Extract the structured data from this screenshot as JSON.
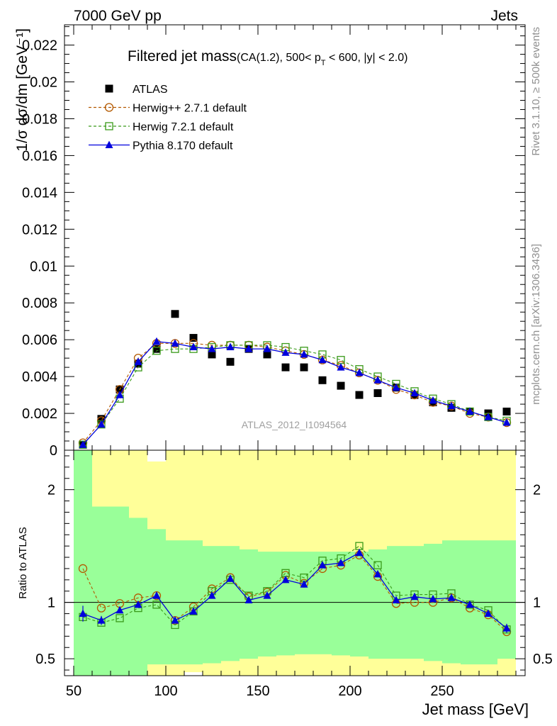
{
  "header": {
    "left": "7000 GeV pp",
    "right": "Jets"
  },
  "title": {
    "main": "Filtered jet mass",
    "sub_pre": "(CA(1.2), 500< p",
    "sub_sub": "T",
    "sub_post": " < 600, |y| < 2.0)"
  },
  "side_labels": {
    "rivet": "Rivet 3.1.10, ≥ 500k events",
    "mcplots": "mcplots.cern.ch [arXiv:1306.3436]"
  },
  "watermark": "ATLAS_2012_I1094564",
  "ylabel_main": "1/σ dσ/dm [GeV⁻¹]",
  "ylabel_ratio": "Ratio to ATLAS",
  "xlabel": "Jet mass [GeV]",
  "colors": {
    "atlas": "#000000",
    "herwigpp": "#b35900",
    "herwig7": "#3a9a1a",
    "pythia": "#0000dd",
    "band_inner": "#99ff99",
    "band_outer": "#ffff99"
  },
  "chart_data": [
    {
      "type": "scatter",
      "title": "Filtered jet mass(CA(1.2), 500< pT < 600, |y| < 2.0)",
      "xlabel": "Jet mass [GeV]",
      "ylabel": "1/σ dσ/dm [GeV⁻¹]",
      "xlim": [
        45,
        295
      ],
      "ylim": [
        0,
        0.0231
      ],
      "xticks": [
        50,
        100,
        150,
        200,
        250
      ],
      "yticks": [
        0,
        0.002,
        0.004,
        0.006,
        0.008,
        0.01,
        0.012,
        0.014,
        0.016,
        0.018,
        0.02,
        0.022
      ],
      "ytick_labels": [
        "0",
        "0.002",
        "0.004",
        "0.006",
        "0.008",
        "0.01",
        "0.012",
        "0.014",
        "0.016",
        "0.018",
        "0.02",
        "0.022"
      ],
      "legend_position": "top-left",
      "x": [
        55,
        65,
        75,
        85,
        95,
        105,
        115,
        125,
        135,
        145,
        155,
        165,
        175,
        185,
        195,
        205,
        215,
        225,
        235,
        245,
        255,
        265,
        275,
        285
      ],
      "series": [
        {
          "name": "ATLAS",
          "marker": "filled-square",
          "values": [
            0.0003,
            0.0017,
            0.0033,
            0.0047,
            0.0055,
            0.0074,
            0.0061,
            0.0052,
            0.0048,
            0.0055,
            0.0052,
            0.0045,
            0.0045,
            0.0038,
            0.0035,
            0.003,
            0.0031,
            0.0034,
            0.003,
            0.0026,
            0.0023,
            0.0021,
            0.002,
            0.0021
          ]
        },
        {
          "name": "Herwig++ 2.7.1 default",
          "marker": "open-circle",
          "line": "dashed",
          "values": [
            0.0004,
            0.0016,
            0.0033,
            0.005,
            0.0058,
            0.0058,
            0.0058,
            0.0057,
            0.0057,
            0.0057,
            0.0056,
            0.0054,
            0.0052,
            0.0049,
            0.0046,
            0.0042,
            0.0038,
            0.0033,
            0.003,
            0.0026,
            0.0024,
            0.002,
            0.0018,
            0.0015
          ]
        },
        {
          "name": "Herwig 7.2.1 default",
          "marker": "open-square",
          "line": "dashed",
          "values": [
            0.0003,
            0.0014,
            0.0028,
            0.0045,
            0.0054,
            0.0055,
            0.0055,
            0.0056,
            0.0057,
            0.0057,
            0.0057,
            0.0056,
            0.0054,
            0.0052,
            0.0049,
            0.0044,
            0.004,
            0.0036,
            0.0032,
            0.0028,
            0.0025,
            0.0021,
            0.0018,
            0.0016
          ]
        },
        {
          "name": "Pythia 8.170 default",
          "marker": "filled-triangle",
          "line": "solid",
          "values": [
            0.0003,
            0.0014,
            0.003,
            0.0048,
            0.0059,
            0.0058,
            0.0056,
            0.0055,
            0.0056,
            0.0055,
            0.0055,
            0.0053,
            0.0052,
            0.0049,
            0.0045,
            0.0042,
            0.0038,
            0.0034,
            0.0031,
            0.0027,
            0.0024,
            0.0021,
            0.0018,
            0.0015
          ]
        }
      ]
    },
    {
      "type": "line",
      "ylabel": "Ratio to ATLAS",
      "xlabel": "Jet mass [GeV]",
      "xlim": [
        45,
        295
      ],
      "ylim": [
        0.35,
        2.35
      ],
      "yticks": [
        0.5,
        1,
        2
      ],
      "ytick_labels": [
        "0.5",
        "1",
        "2"
      ],
      "reference_line": 1,
      "x": [
        55,
        65,
        75,
        85,
        95,
        105,
        115,
        125,
        135,
        145,
        155,
        165,
        175,
        185,
        195,
        205,
        215,
        225,
        235,
        245,
        255,
        265,
        275,
        285
      ],
      "bin_edges": [
        50,
        60,
        70,
        80,
        90,
        100,
        110,
        120,
        130,
        140,
        150,
        160,
        170,
        180,
        190,
        200,
        210,
        220,
        230,
        240,
        250,
        260,
        270,
        280,
        290
      ],
      "band_inner": {
        "low": [
          0.35,
          0.35,
          0.35,
          0.35,
          0.45,
          0.45,
          0.45,
          0.46,
          0.48,
          0.5,
          0.52,
          0.53,
          0.54,
          0.54,
          0.53,
          0.52,
          0.5,
          0.5,
          0.5,
          0.48,
          0.46,
          0.45,
          0.45,
          0.5
        ],
        "high": [
          2.35,
          1.85,
          1.85,
          1.75,
          1.65,
          1.55,
          1.55,
          1.5,
          1.5,
          1.47,
          1.45,
          1.45,
          1.45,
          1.45,
          1.45,
          1.45,
          1.47,
          1.5,
          1.5,
          1.52,
          1.55,
          1.55,
          1.55,
          1.55
        ]
      },
      "band_outer": {
        "low": [
          0.35,
          0.35,
          0.35,
          0.35,
          0.35,
          0.35,
          0.38,
          0.35,
          0.35,
          0.35,
          0.35,
          0.35,
          0.35,
          0.35,
          0.35,
          0.35,
          0.35,
          0.35,
          0.35,
          0.35,
          0.35,
          0.35,
          0.35,
          0.35
        ],
        "high": [
          2.35,
          2.35,
          2.35,
          2.35,
          2.25,
          2.35,
          2.35,
          2.35,
          2.35,
          2.35,
          2.35,
          2.35,
          2.35,
          2.35,
          2.35,
          2.35,
          2.35,
          2.35,
          2.35,
          2.35,
          2.35,
          2.35,
          2.35,
          2.35
        ],
        "note": ""
      },
      "series": [
        {
          "name": "Herwig++ 2.7.1 default",
          "values": [
            1.3,
            0.95,
            0.99,
            1.04,
            1.06,
            0.84,
            0.96,
            1.12,
            1.22,
            1.05,
            1.09,
            1.24,
            1.17,
            1.3,
            1.33,
            1.42,
            1.23,
            0.99,
            1.0,
            1.0,
            1.04,
            0.95,
            0.89,
            0.74
          ],
          "errors": []
        },
        {
          "name": "Herwig 7.2.1 default",
          "values": [
            0.87,
            0.82,
            0.86,
            0.95,
            0.98,
            0.8,
            0.92,
            1.1,
            1.2,
            1.06,
            1.1,
            1.26,
            1.22,
            1.37,
            1.39,
            1.5,
            1.33,
            1.06,
            1.07,
            1.07,
            1.08,
            0.98,
            0.93,
            0.76
          ],
          "errors": []
        },
        {
          "name": "Pythia 8.170 default",
          "values": [
            0.9,
            0.84,
            0.93,
            0.98,
            1.06,
            0.84,
            0.92,
            1.06,
            1.21,
            1.02,
            1.06,
            1.2,
            1.16,
            1.33,
            1.35,
            1.44,
            1.25,
            1.02,
            1.05,
            1.03,
            1.04,
            0.98,
            0.9,
            0.77
          ],
          "errors": [
            0.07,
            0.04,
            0.01,
            0.01,
            0.01,
            0.01,
            0.01,
            0.01,
            0.01,
            0.01,
            0.01,
            0.01,
            0.01,
            0.01,
            0.01,
            0.01,
            0.01,
            0.01,
            0.01,
            0.01,
            0.01,
            0.01,
            0.02,
            0.04
          ]
        }
      ]
    }
  ]
}
